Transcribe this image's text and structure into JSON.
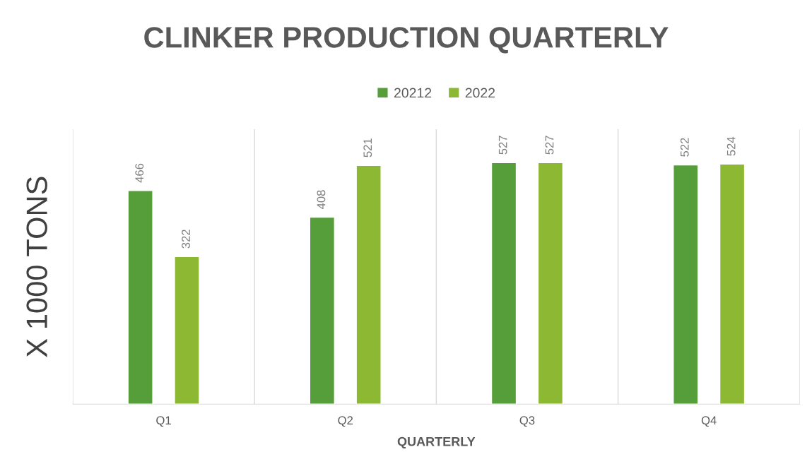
{
  "chart_data": {
    "type": "bar",
    "title": "CLINKER PRODUCTION QUARTERLY",
    "xlabel": "QUARTERLY",
    "ylabel": "X 1000 TONS",
    "categories": [
      "Q1",
      "Q2",
      "Q3",
      "Q4"
    ],
    "series": [
      {
        "name": "20212",
        "color": "#559e3a",
        "values": [
          466,
          408,
          527,
          522
        ]
      },
      {
        "name": "2022",
        "color": "#8cb833",
        "values": [
          322,
          521,
          527,
          524
        ]
      }
    ],
    "ylim": [
      0,
      600
    ],
    "tick_labels": "x",
    "data_labels": true,
    "grid": "x",
    "legend": "top"
  }
}
